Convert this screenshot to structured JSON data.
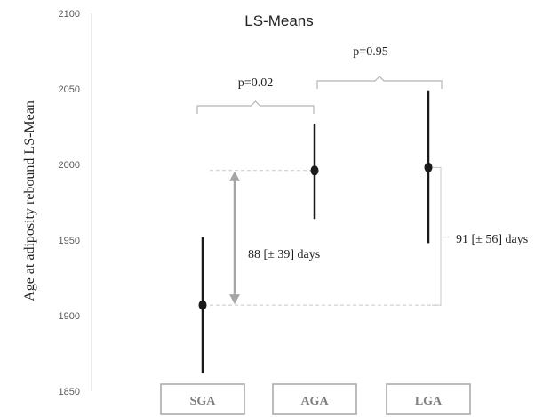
{
  "chart_data": {
    "type": "scatter",
    "title": "LS-Means",
    "xlabel": "",
    "ylabel": "Age at adiposity rebound LS-Mean",
    "categories": [
      "SGA",
      "AGA",
      "LGA"
    ],
    "ylim": [
      1850,
      2100
    ],
    "yticks": [
      "1850",
      "1900",
      "1950",
      "2000",
      "2050",
      "2100"
    ],
    "grid": false,
    "legend": "none",
    "points": [
      {
        "category": "SGA",
        "mean": 1907,
        "lower": 1862,
        "upper": 1952
      },
      {
        "category": "AGA",
        "mean": 1996,
        "lower": 1964,
        "upper": 2027
      },
      {
        "category": "LGA",
        "mean": 1998,
        "lower": 1948,
        "upper": 2049
      }
    ],
    "annotations": {
      "p_sga_aga": "p=0.02",
      "p_aga_lga": "p=0.95",
      "diff_sga_aga": "88 [± 39] days",
      "diff_sga_lga": "91 [± 56] days"
    },
    "colors": {
      "marker": "#1a1a1a",
      "error_bar": "#1a1a1a",
      "difference_arrow": "#a6a6a6",
      "bracket": "#b5b5b5",
      "axis_text": "#595959",
      "category_box": "#a6a6a6"
    }
  }
}
